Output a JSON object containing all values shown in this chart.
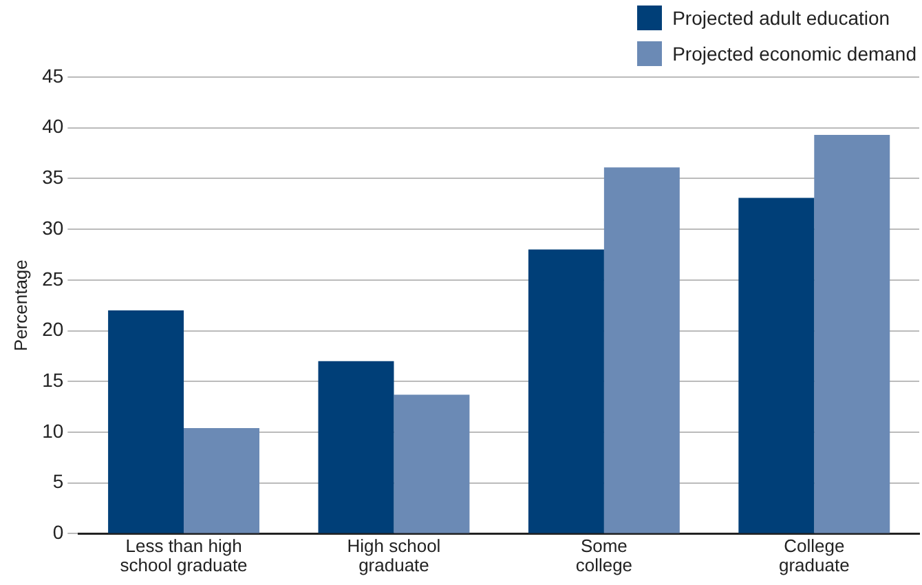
{
  "chart_data": {
    "type": "bar",
    "ylabel": "Percentage",
    "categories": [
      "Less than high school graduate",
      "High school graduate",
      "Some college",
      "College graduate"
    ],
    "series": [
      {
        "name": "Projected adult education",
        "color": "#003f78",
        "values": [
          22,
          17,
          28,
          33.1
        ]
      },
      {
        "name": "Projected economic demand",
        "color": "#6b8ab5",
        "values": [
          10.4,
          13.7,
          36.1,
          39.3
        ]
      }
    ],
    "ylim": [
      0,
      45
    ],
    "yticks": [
      0,
      5,
      10,
      15,
      20,
      25,
      30,
      35,
      40,
      45
    ],
    "grid": "y",
    "legend": "top right"
  }
}
